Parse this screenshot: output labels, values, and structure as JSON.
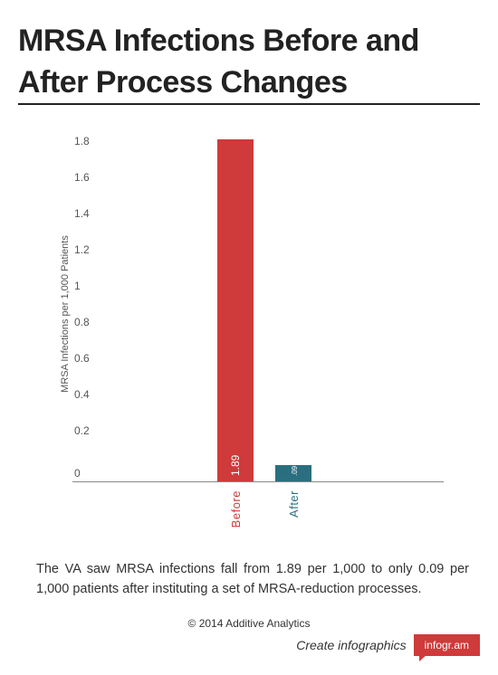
{
  "title": "MRSA Infections Before and After Process Changes",
  "description": "The VA saw MRSA infections fall from 1.89 per 1,000 to only 0.09 per 1,000 patients after instituting a set of MRSA-reduction processes.",
  "copyright": "© 2014 Additive Analytics",
  "footer": {
    "create_label": "Create infographics",
    "badge_label": "infogr.am"
  },
  "colors": {
    "before": "#cf3a3a",
    "after": "#2a6f80",
    "badge": "#cf3a3a"
  },
  "chart_data": {
    "type": "bar",
    "title": "MRSA Infections Before and After Process Changes",
    "xlabel": "",
    "ylabel": "MRSA Infections per 1,000 Patients",
    "ylim": [
      0,
      1.9
    ],
    "grid": false,
    "legend": "none",
    "categories": [
      "Before",
      "After"
    ],
    "values": [
      1.89,
      0.09
    ],
    "data_labels": [
      "1.89",
      ".09"
    ],
    "y_ticks": [
      {
        "value": 0,
        "label": "0"
      },
      {
        "value": 0.2,
        "label": "0.2"
      },
      {
        "value": 0.4,
        "label": "0.4"
      },
      {
        "value": 0.6,
        "label": "0.6"
      },
      {
        "value": 0.8,
        "label": "0.8"
      },
      {
        "value": 1,
        "label": "1"
      },
      {
        "value": 1.2,
        "label": "1.2"
      },
      {
        "value": 1.4,
        "label": "1.4"
      },
      {
        "value": 1.6,
        "label": "1.6"
      },
      {
        "value": 1.8,
        "label": "1.8"
      }
    ]
  }
}
